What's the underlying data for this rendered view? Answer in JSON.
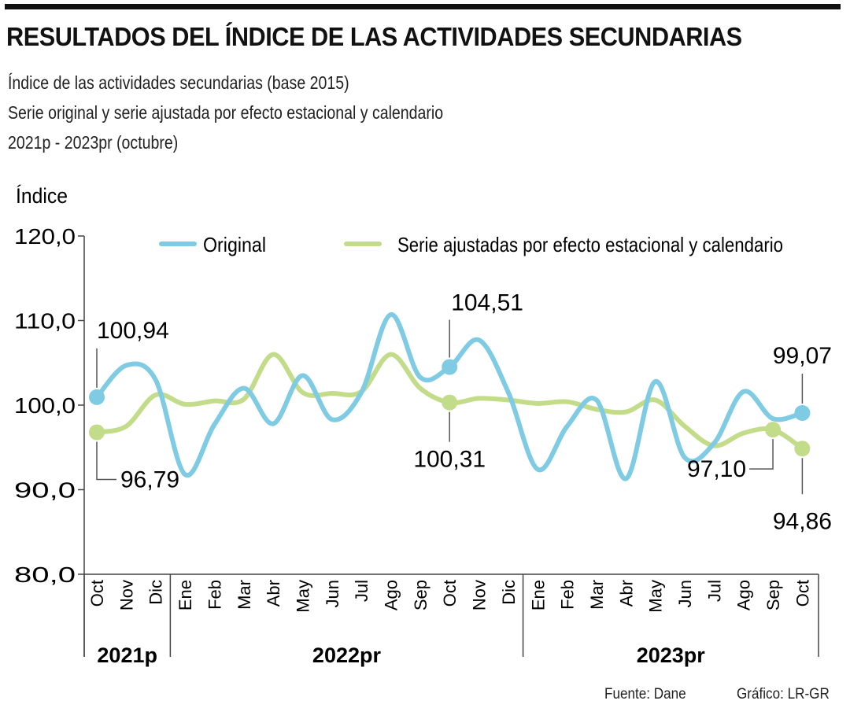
{
  "title": "RESULTADOS DEL ÍNDICE DE LAS ACTIVIDADES SECUNDARIAS",
  "subtitles": [
    "Índice de las actividades secundarias (base 2015)",
    "Serie original y serie ajustada por efecto estacional y calendario",
    "2021p - 2023pr (octubre)"
  ],
  "footer": {
    "source": "Fuente: Dane",
    "credit": "Gráfico: LR-GR"
  },
  "chart_data": {
    "type": "line",
    "ylabel": "Índice",
    "ylim": [
      80,
      120
    ],
    "yticks": [
      "80,0",
      "90,0",
      "100,0",
      "110,0",
      "120,0"
    ],
    "ytick_values": [
      80,
      90,
      100,
      110,
      120
    ],
    "categories": [
      "Oct",
      "Nov",
      "Dic",
      "Ene",
      "Feb",
      "Mar",
      "Abr",
      "May",
      "Jun",
      "Jul",
      "Ago",
      "Sep",
      "Oct",
      "Nov",
      "Dic",
      "Ene",
      "Feb",
      "Mar",
      "Abr",
      "May",
      "Jun",
      "Jul",
      "Ago",
      "Sep",
      "Oct"
    ],
    "year_groups": [
      {
        "label": "2021p",
        "count": 3
      },
      {
        "label": "2022pr",
        "count": 12
      },
      {
        "label": "2023pr",
        "count": 10
      }
    ],
    "legend_position": "top",
    "grid": false,
    "series": [
      {
        "name": "Original",
        "color": "#7ecbe3",
        "values": [
          100.94,
          104.7,
          103.0,
          91.8,
          97.7,
          102.0,
          97.8,
          103.5,
          98.3,
          101.5,
          110.7,
          103.3,
          104.51,
          107.7,
          101.5,
          92.4,
          97.5,
          100.6,
          91.3,
          102.8,
          93.8,
          95.5,
          101.6,
          98.4,
          99.07
        ]
      },
      {
        "name": "Serie ajustadas por efecto estacional y calendario",
        "color": "#c3dc8a",
        "values": [
          96.79,
          97.5,
          101.2,
          100.1,
          100.5,
          100.7,
          106.0,
          101.5,
          101.4,
          101.6,
          106.0,
          102.0,
          100.31,
          100.8,
          100.6,
          100.2,
          100.4,
          99.5,
          99.2,
          100.6,
          97.5,
          95.2,
          96.7,
          97.1,
          94.86
        ]
      }
    ],
    "annotations": [
      {
        "series": 0,
        "index": 0,
        "text": "100,94"
      },
      {
        "series": 1,
        "index": 0,
        "text": "96,79"
      },
      {
        "series": 0,
        "index": 12,
        "text": "104,51"
      },
      {
        "series": 1,
        "index": 12,
        "text": "100,31"
      },
      {
        "series": 0,
        "index": 24,
        "text": "99,07"
      },
      {
        "series": 1,
        "index": 23,
        "text": "97,10"
      },
      {
        "series": 1,
        "index": 24,
        "text": "94,86"
      }
    ]
  }
}
